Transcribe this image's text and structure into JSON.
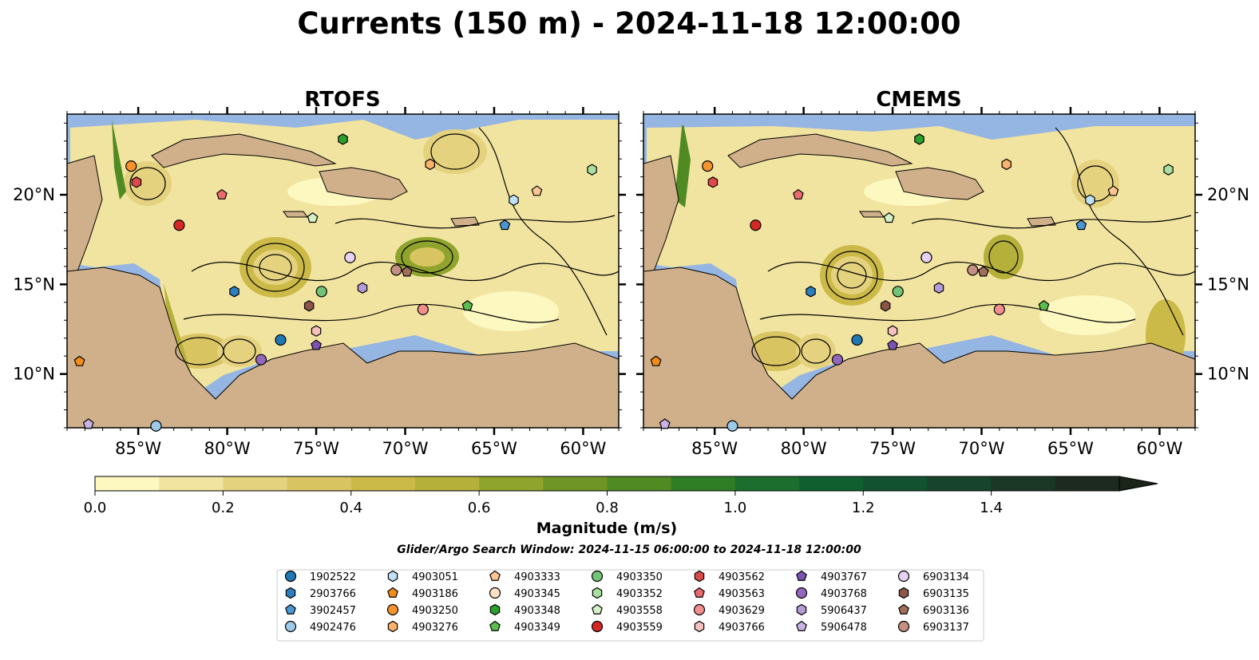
{
  "title": "Currents (150 m) - 2024-11-18 12:00:00",
  "chart_data": {
    "type": "heatmap",
    "subtype": "ocean current magnitude with streamlines and float/glider positions",
    "panels": [
      {
        "title": "RTOFS",
        "tick_side": "left"
      },
      {
        "title": "CMEMS",
        "tick_side": "right"
      }
    ],
    "extent": {
      "lon": [
        -89,
        -58
      ],
      "lat": [
        7,
        24.5
      ]
    },
    "xticks": [
      {
        "value": -85,
        "label": "85°W"
      },
      {
        "value": -80,
        "label": "80°W"
      },
      {
        "value": -75,
        "label": "75°W"
      },
      {
        "value": -70,
        "label": "70°W"
      },
      {
        "value": -65,
        "label": "65°W"
      },
      {
        "value": -60,
        "label": "60°W"
      }
    ],
    "yticks": [
      {
        "value": 10,
        "label": "10°N"
      },
      {
        "value": 15,
        "label": "15°N"
      },
      {
        "value": 20,
        "label": "20°N"
      }
    ],
    "colors": {
      "ocean": "#95b5e2",
      "land": "#cfb08a"
    },
    "colorbar": {
      "label": "Magnitude (m/s)",
      "min": 0,
      "max": 1.6,
      "extend": "max",
      "ticks": [
        {
          "value": 0.0,
          "label": "0.0"
        },
        {
          "value": 0.2,
          "label": "0.2"
        },
        {
          "value": 0.4,
          "label": "0.4"
        },
        {
          "value": 0.6,
          "label": "0.6"
        },
        {
          "value": 0.8,
          "label": "0.8"
        },
        {
          "value": 1.0,
          "label": "1.0"
        },
        {
          "value": 1.2,
          "label": "1.2"
        },
        {
          "value": 1.4,
          "label": "1.4"
        }
      ],
      "colors": [
        "#fdf7c0",
        "#f1e4a0",
        "#e5d27f",
        "#d9c462",
        "#cbba48",
        "#b5b03a",
        "#8fa42c",
        "#6e9525",
        "#4f8a22",
        "#2f7e26",
        "#1b6e2d",
        "#10602f",
        "#125230",
        "#17442c",
        "#1b3827",
        "#1d2a1f"
      ]
    },
    "subtitle": "Glider/Argo Search Window: 2024-11-15 06:00:00 to 2024-11-18 12:00:00",
    "legend": [
      {
        "id": "1902522",
        "marker": "circle",
        "color": "#1f77b4"
      },
      {
        "id": "2903766",
        "marker": "hexagon",
        "color": "#2c7fc0"
      },
      {
        "id": "3902457",
        "marker": "pentagon",
        "color": "#4a97d4"
      },
      {
        "id": "4902476",
        "marker": "circle",
        "color": "#9ecae9"
      },
      {
        "id": "4903051",
        "marker": "hexagon",
        "color": "#bfe0f5"
      },
      {
        "id": "4903186",
        "marker": "pentagon",
        "color": "#f28c1a"
      },
      {
        "id": "4903250",
        "marker": "circle",
        "color": "#f7922f"
      },
      {
        "id": "4903276",
        "marker": "hexagon",
        "color": "#fbb26a"
      },
      {
        "id": "4903333",
        "marker": "pentagon",
        "color": "#fcc591"
      },
      {
        "id": "4903345",
        "marker": "circle",
        "color": "#fde0c2"
      },
      {
        "id": "4903348",
        "marker": "hexagon",
        "color": "#2ca02c"
      },
      {
        "id": "4903349",
        "marker": "pentagon",
        "color": "#5bbd4e"
      },
      {
        "id": "4903350",
        "marker": "circle",
        "color": "#74c476"
      },
      {
        "id": "4903352",
        "marker": "hexagon",
        "color": "#a9dfa0"
      },
      {
        "id": "4903558",
        "marker": "pentagon",
        "color": "#d3f0c6"
      },
      {
        "id": "4903559",
        "marker": "circle",
        "color": "#d62728"
      },
      {
        "id": "4903562",
        "marker": "hexagon",
        "color": "#de4a4b"
      },
      {
        "id": "4903563",
        "marker": "pentagon",
        "color": "#ea6b6e"
      },
      {
        "id": "4903629",
        "marker": "circle",
        "color": "#f28e8e"
      },
      {
        "id": "4903766",
        "marker": "hexagon",
        "color": "#f9c0c0"
      },
      {
        "id": "4903767",
        "marker": "pentagon",
        "color": "#7b54b3"
      },
      {
        "id": "4903768",
        "marker": "circle",
        "color": "#9467bd"
      },
      {
        "id": "5906437",
        "marker": "hexagon",
        "color": "#b49bd6"
      },
      {
        "id": "5906478",
        "marker": "pentagon",
        "color": "#c9b3e6"
      },
      {
        "id": "6903134",
        "marker": "circle",
        "color": "#e8d2f3"
      },
      {
        "id": "6903135",
        "marker": "hexagon",
        "color": "#8c564b"
      },
      {
        "id": "6903136",
        "marker": "pentagon",
        "color": "#a26f5f"
      },
      {
        "id": "6903137",
        "marker": "circle",
        "color": "#c49084"
      }
    ],
    "positions": [
      {
        "id": "1902522",
        "lon": -77.0,
        "lat": 11.9
      },
      {
        "id": "2903766",
        "lon": -79.6,
        "lat": 14.6
      },
      {
        "id": "3902457",
        "lon": -64.4,
        "lat": 18.3
      },
      {
        "id": "4902476",
        "lon": -84.0,
        "lat": 7.1
      },
      {
        "id": "4903051",
        "lon": -63.9,
        "lat": 19.7
      },
      {
        "id": "4903186",
        "lon": -88.3,
        "lat": 10.7
      },
      {
        "id": "4903250",
        "lon": -85.4,
        "lat": 21.6
      },
      {
        "id": "4903276",
        "lon": -68.6,
        "lat": 21.7
      },
      {
        "id": "4903333",
        "lon": -62.6,
        "lat": 20.2
      },
      {
        "id": "4903345",
        "lon": -73.1,
        "lat": 16.5
      },
      {
        "id": "4903348",
        "lon": -73.5,
        "lat": 23.1
      },
      {
        "id": "4903349",
        "lon": -66.5,
        "lat": 13.8
      },
      {
        "id": "4903350",
        "lon": -74.7,
        "lat": 14.6
      },
      {
        "id": "4903352",
        "lon": -59.5,
        "lat": 21.4
      },
      {
        "id": "4903558",
        "lon": -75.2,
        "lat": 18.7
      },
      {
        "id": "4903559",
        "lon": -82.7,
        "lat": 18.3
      },
      {
        "id": "4903562",
        "lon": -85.1,
        "lat": 20.7
      },
      {
        "id": "4903563",
        "lon": -80.3,
        "lat": 20.0
      },
      {
        "id": "4903629",
        "lon": -69.0,
        "lat": 13.6
      },
      {
        "id": "4903766",
        "lon": -75.0,
        "lat": 12.4
      },
      {
        "id": "4903767",
        "lon": -75.0,
        "lat": 11.6
      },
      {
        "id": "4903768",
        "lon": -78.1,
        "lat": 10.8
      },
      {
        "id": "5906437",
        "lon": -72.4,
        "lat": 14.8
      },
      {
        "id": "5906478",
        "lon": -87.8,
        "lat": 7.2
      },
      {
        "id": "6903134",
        "lon": -73.1,
        "lat": 16.5
      },
      {
        "id": "6903135",
        "lon": -75.4,
        "lat": 13.8
      },
      {
        "id": "6903136",
        "lon": -69.9,
        "lat": 15.7
      },
      {
        "id": "6903137",
        "lon": -70.5,
        "lat": 15.8
      }
    ]
  }
}
